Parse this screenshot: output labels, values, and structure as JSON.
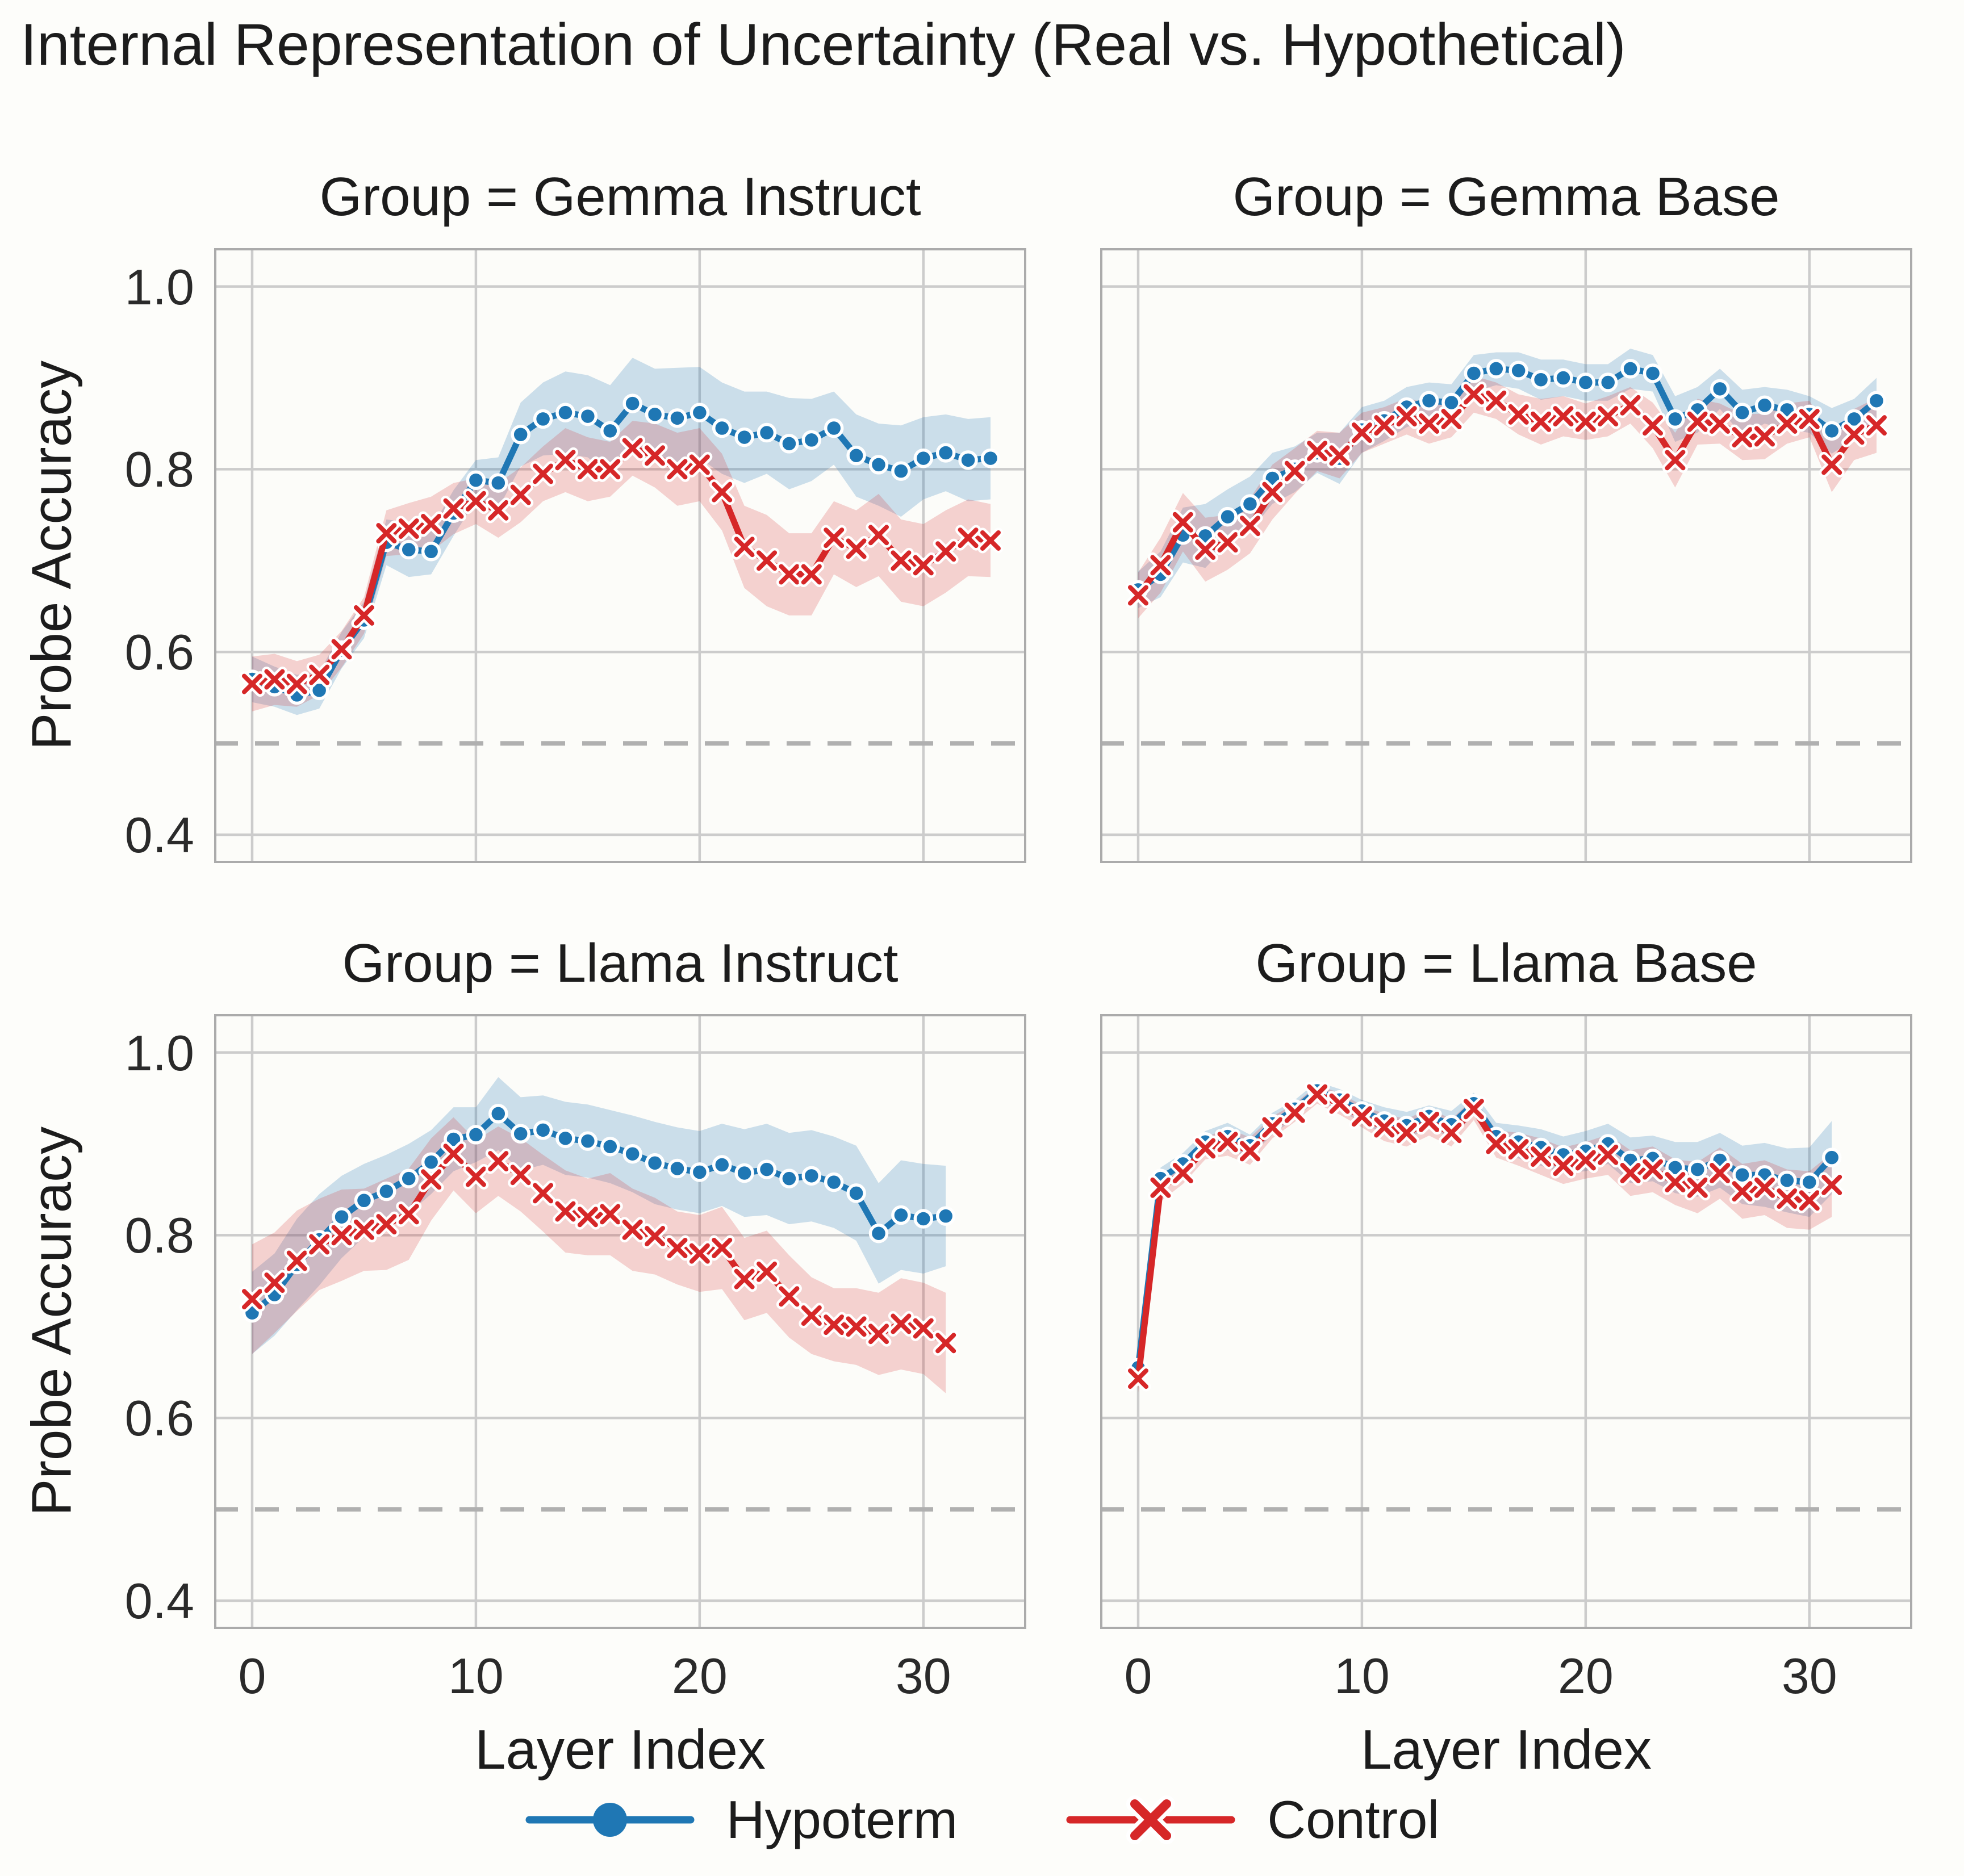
{
  "chart_data": {
    "type": "line",
    "title": "Internal Representation of Uncertainty (Real vs. Hypothetical)",
    "xlabel": "Layer Index",
    "ylabel": "Probe Accuracy",
    "grid": true,
    "legend_position": "bottom-center",
    "xlim": [
      -1.7,
      34.6
    ],
    "ylim": [
      0.369,
      1.042
    ],
    "x_ticks": [
      {
        "v": 0,
        "label": "0"
      },
      {
        "v": 10,
        "label": "10"
      },
      {
        "v": 20,
        "label": "20"
      },
      {
        "v": 30,
        "label": "30"
      }
    ],
    "y_ticks": [
      {
        "v": 1.0,
        "label": "1.0"
      },
      {
        "v": 0.8,
        "label": "0.8"
      },
      {
        "v": 0.6,
        "label": "0.6"
      },
      {
        "v": 0.4,
        "label": "0.4"
      }
    ],
    "chance_baseline": 0.5,
    "colors": {
      "hypoterm": "#1f77b4",
      "control": "#d62728",
      "grid": "#cccccc",
      "spine": "#ababab",
      "baseline": "#b0b0b0"
    },
    "legend": [
      {
        "label": "Hypoterm",
        "color": "#1f77b4",
        "marker": "circle"
      },
      {
        "label": "Control",
        "color": "#d62728",
        "marker": "x"
      }
    ],
    "facets": [
      {
        "title": "Group = Gemma Instruct",
        "x": [
          0,
          1,
          2,
          3,
          4,
          5,
          6,
          7,
          8,
          9,
          10,
          11,
          12,
          13,
          14,
          15,
          16,
          17,
          18,
          19,
          20,
          21,
          22,
          23,
          24,
          25,
          26,
          27,
          28,
          29,
          30,
          31,
          32,
          33
        ],
        "series": [
          {
            "name": "Hypoterm",
            "values": [
              0.57,
              0.562,
              0.553,
              0.558,
              0.602,
              0.635,
              0.72,
              0.712,
              0.71,
              0.752,
              0.788,
              0.785,
              0.838,
              0.855,
              0.862,
              0.858,
              0.842,
              0.872,
              0.86,
              0.856,
              0.862,
              0.845,
              0.835,
              0.84,
              0.828,
              0.832,
              0.845,
              0.815,
              0.805,
              0.798,
              0.812,
              0.818,
              0.81,
              0.812
            ],
            "ci": [
              0.025,
              0.022,
              0.022,
              0.02,
              0.02,
              0.02,
              0.025,
              0.03,
              0.025,
              0.025,
              0.022,
              0.028,
              0.035,
              0.04,
              0.045,
              0.045,
              0.05,
              0.05,
              0.05,
              0.055,
              0.05,
              0.05,
              0.05,
              0.045,
              0.05,
              0.045,
              0.04,
              0.045,
              0.045,
              0.05,
              0.045,
              0.042,
              0.045,
              0.045
            ]
          },
          {
            "name": "Control",
            "values": [
              0.565,
              0.57,
              0.565,
              0.575,
              0.603,
              0.64,
              0.73,
              0.735,
              0.74,
              0.757,
              0.765,
              0.755,
              0.772,
              0.795,
              0.81,
              0.8,
              0.8,
              0.823,
              0.815,
              0.8,
              0.805,
              0.775,
              0.715,
              0.7,
              0.685,
              0.685,
              0.725,
              0.713,
              0.728,
              0.7,
              0.695,
              0.71,
              0.725,
              0.722
            ],
            "ci": [
              0.03,
              0.028,
              0.025,
              0.022,
              0.02,
              0.02,
              0.025,
              0.028,
              0.03,
              0.028,
              0.025,
              0.03,
              0.03,
              0.03,
              0.035,
              0.035,
              0.03,
              0.03,
              0.035,
              0.04,
              0.04,
              0.042,
              0.045,
              0.05,
              0.045,
              0.045,
              0.04,
              0.042,
              0.045,
              0.045,
              0.045,
              0.045,
              0.042,
              0.04
            ]
          }
        ]
      },
      {
        "title": "Group = Gemma Base",
        "x": [
          0,
          1,
          2,
          3,
          4,
          5,
          6,
          7,
          8,
          9,
          10,
          11,
          12,
          13,
          14,
          15,
          16,
          17,
          18,
          19,
          20,
          21,
          22,
          23,
          24,
          25,
          26,
          27,
          28,
          29,
          30,
          31,
          32,
          33
        ],
        "series": [
          {
            "name": "Hypoterm",
            "values": [
              0.668,
              0.685,
              0.728,
              0.727,
              0.748,
              0.762,
              0.79,
              0.8,
              0.818,
              0.812,
              0.843,
              0.853,
              0.868,
              0.875,
              0.873,
              0.905,
              0.91,
              0.908,
              0.898,
              0.9,
              0.895,
              0.895,
              0.91,
              0.905,
              0.855,
              0.865,
              0.888,
              0.862,
              0.87,
              0.865,
              0.86,
              0.842,
              0.855,
              0.875
            ],
            "ci": [
              0.02,
              0.025,
              0.03,
              0.035,
              0.03,
              0.03,
              0.028,
              0.025,
              0.022,
              0.028,
              0.025,
              0.022,
              0.022,
              0.02,
              0.02,
              0.02,
              0.018,
              0.02,
              0.022,
              0.02,
              0.02,
              0.02,
              0.022,
              0.02,
              0.025,
              0.025,
              0.022,
              0.025,
              0.02,
              0.022,
              0.02,
              0.025,
              0.022,
              0.025
            ]
          },
          {
            "name": "Control",
            "values": [
              0.662,
              0.695,
              0.742,
              0.712,
              0.72,
              0.738,
              0.775,
              0.798,
              0.82,
              0.815,
              0.84,
              0.848,
              0.858,
              0.85,
              0.855,
              0.882,
              0.875,
              0.86,
              0.852,
              0.858,
              0.852,
              0.858,
              0.87,
              0.848,
              0.81,
              0.852,
              0.85,
              0.835,
              0.836,
              0.85,
              0.855,
              0.805,
              0.838,
              0.848
            ],
            "ci": [
              0.025,
              0.03,
              0.032,
              0.035,
              0.03,
              0.03,
              0.03,
              0.025,
              0.022,
              0.025,
              0.022,
              0.02,
              0.02,
              0.022,
              0.02,
              0.02,
              0.02,
              0.022,
              0.025,
              0.022,
              0.02,
              0.022,
              0.02,
              0.025,
              0.03,
              0.025,
              0.022,
              0.025,
              0.025,
              0.022,
              0.02,
              0.03,
              0.028,
              0.03
            ]
          }
        ]
      },
      {
        "title": "Group = Llama Instruct",
        "x": [
          0,
          1,
          2,
          3,
          4,
          5,
          6,
          7,
          8,
          9,
          10,
          11,
          12,
          13,
          14,
          15,
          16,
          17,
          18,
          19,
          20,
          21,
          22,
          23,
          24,
          25,
          26,
          27,
          28,
          29,
          30,
          31
        ],
        "series": [
          {
            "name": "Hypoterm",
            "values": [
              0.715,
              0.735,
              0.768,
              0.795,
              0.82,
              0.838,
              0.848,
              0.862,
              0.88,
              0.905,
              0.91,
              0.933,
              0.911,
              0.915,
              0.906,
              0.903,
              0.897,
              0.889,
              0.879,
              0.873,
              0.869,
              0.877,
              0.868,
              0.872,
              0.862,
              0.865,
              0.858,
              0.846,
              0.802,
              0.822,
              0.818,
              0.821
            ],
            "ci": [
              0.045,
              0.045,
              0.05,
              0.05,
              0.045,
              0.04,
              0.04,
              0.038,
              0.035,
              0.035,
              0.03,
              0.04,
              0.04,
              0.038,
              0.04,
              0.04,
              0.04,
              0.042,
              0.045,
              0.045,
              0.045,
              0.045,
              0.048,
              0.05,
              0.05,
              0.05,
              0.05,
              0.052,
              0.055,
              0.06,
              0.06,
              0.055
            ]
          },
          {
            "name": "Control",
            "values": [
              0.73,
              0.748,
              0.772,
              0.79,
              0.8,
              0.806,
              0.812,
              0.823,
              0.861,
              0.889,
              0.864,
              0.881,
              0.866,
              0.846,
              0.826,
              0.82,
              0.823,
              0.806,
              0.799,
              0.786,
              0.78,
              0.786,
              0.752,
              0.76,
              0.733,
              0.712,
              0.702,
              0.7,
              0.692,
              0.703,
              0.698,
              0.682
            ],
            "ci": [
              0.06,
              0.055,
              0.055,
              0.05,
              0.05,
              0.045,
              0.05,
              0.05,
              0.045,
              0.04,
              0.04,
              0.038,
              0.04,
              0.042,
              0.045,
              0.042,
              0.045,
              0.045,
              0.042,
              0.04,
              0.042,
              0.045,
              0.045,
              0.045,
              0.045,
              0.042,
              0.04,
              0.042,
              0.045,
              0.05,
              0.05,
              0.055
            ]
          }
        ]
      },
      {
        "title": "Group = Llama Base",
        "x": [
          0,
          1,
          2,
          3,
          4,
          5,
          6,
          7,
          8,
          9,
          10,
          11,
          12,
          13,
          14,
          15,
          16,
          17,
          18,
          19,
          20,
          21,
          22,
          23,
          24,
          25,
          26,
          27,
          28,
          29,
          30,
          31
        ],
        "series": [
          {
            "name": "Hypoterm",
            "values": [
              0.655,
              0.862,
              0.878,
              0.902,
              0.908,
              0.898,
              0.922,
              0.938,
              0.958,
              0.948,
              0.936,
              0.925,
              0.92,
              0.93,
              0.921,
              0.944,
              0.908,
              0.902,
              0.896,
              0.888,
              0.892,
              0.9,
              0.882,
              0.884,
              0.874,
              0.872,
              0.882,
              0.866,
              0.866,
              0.86,
              0.858,
              0.885
            ],
            "ci": [
              0.012,
              0.012,
              0.012,
              0.012,
              0.015,
              0.012,
              0.012,
              0.01,
              0.01,
              0.012,
              0.012,
              0.015,
              0.015,
              0.012,
              0.015,
              0.012,
              0.015,
              0.018,
              0.02,
              0.02,
              0.022,
              0.022,
              0.025,
              0.025,
              0.028,
              0.03,
              0.03,
              0.032,
              0.035,
              0.035,
              0.038,
              0.04
            ]
          },
          {
            "name": "Control",
            "values": [
              0.643,
              0.852,
              0.868,
              0.895,
              0.902,
              0.892,
              0.918,
              0.934,
              0.954,
              0.944,
              0.93,
              0.918,
              0.912,
              0.924,
              0.912,
              0.938,
              0.9,
              0.894,
              0.886,
              0.876,
              0.882,
              0.888,
              0.868,
              0.872,
              0.858,
              0.852,
              0.868,
              0.848,
              0.852,
              0.84,
              0.838,
              0.855
            ],
            "ci": [
              0.015,
              0.015,
              0.012,
              0.012,
              0.015,
              0.015,
              0.012,
              0.01,
              0.01,
              0.012,
              0.012,
              0.015,
              0.015,
              0.015,
              0.015,
              0.012,
              0.015,
              0.018,
              0.02,
              0.02,
              0.02,
              0.022,
              0.025,
              0.025,
              0.025,
              0.028,
              0.028,
              0.03,
              0.03,
              0.032,
              0.032,
              0.035
            ]
          }
        ]
      }
    ]
  }
}
